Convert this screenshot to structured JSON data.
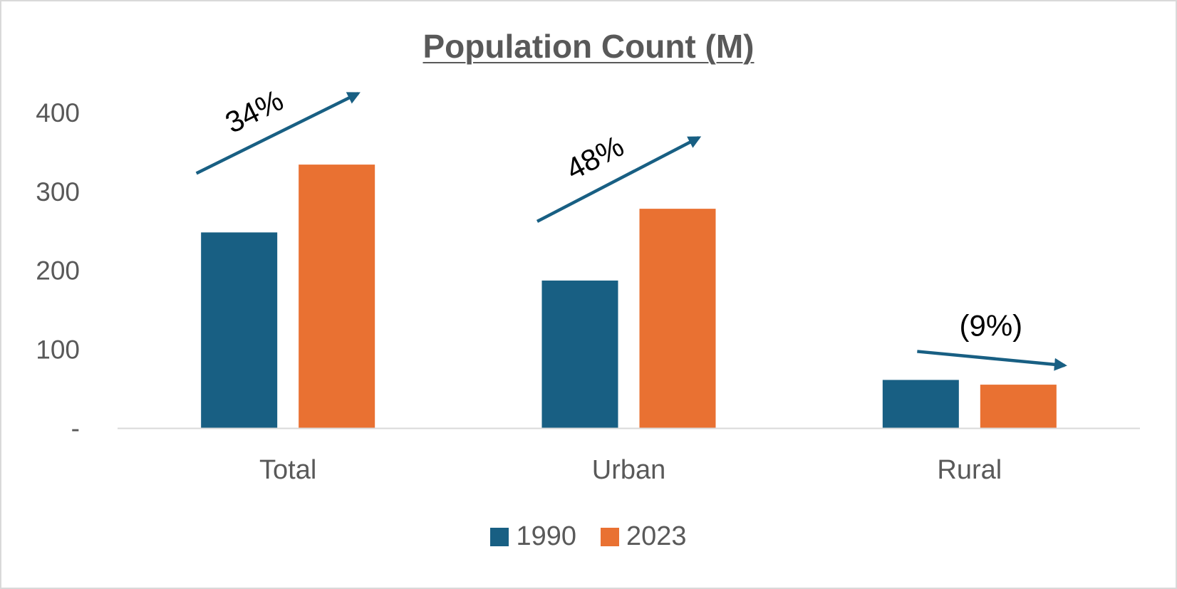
{
  "chart_data": {
    "type": "bar",
    "title": "Population Count (M)",
    "categories": [
      "Total",
      "Urban",
      "Rural"
    ],
    "series": [
      {
        "name": "1990",
        "values": [
          248,
          187,
          61
        ],
        "color": "#185f83"
      },
      {
        "name": "2023",
        "values": [
          334,
          278,
          55
        ],
        "color": "#e97132"
      }
    ],
    "ylim": [
      0,
      400
    ],
    "yticks": [
      {
        "value": 0,
        "label": "-"
      },
      {
        "value": 100,
        "label": "100"
      },
      {
        "value": 200,
        "label": "200"
      },
      {
        "value": 300,
        "label": "300"
      },
      {
        "value": 400,
        "label": "400"
      }
    ],
    "xlabel": "",
    "ylabel": "",
    "legend_position": "bottom",
    "annotations": [
      {
        "category": "Total",
        "label": "34%",
        "direction": "up"
      },
      {
        "category": "Urban",
        "label": "48%",
        "direction": "up"
      },
      {
        "category": "Rural",
        "label": "(9%)",
        "direction": "down"
      }
    ],
    "colors": {
      "axis": "#d9d9d9",
      "text": "#595959",
      "arrow": "#185f83",
      "annotation_text": "#000000"
    }
  }
}
